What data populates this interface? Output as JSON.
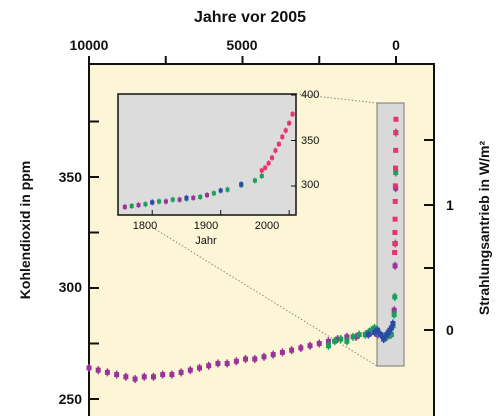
{
  "chart_data": [
    {
      "type": "scatter",
      "title": "",
      "top_axis": {
        "label": "Jahre vor 2005",
        "ticks": [
          "10000",
          "5000",
          "0"
        ],
        "reversed": true,
        "xlim": [
          10500,
          -1000
        ]
      },
      "y_left": {
        "label": "Kohlendioxid in ppm",
        "ticks": [
          "250",
          "300",
          "350"
        ],
        "ylim": [
          240,
          400
        ]
      },
      "y_right": {
        "label": "Strahlungsantrieb in W/m²",
        "ticks": [
          "0",
          "1"
        ]
      },
      "series": [
        {
          "color": "#993399",
          "x": [
            10000,
            9700,
            9400,
            9100,
            8800,
            8500,
            8200,
            7900,
            7600,
            7300,
            7000,
            6700,
            6400,
            6100,
            5800,
            5500,
            5200,
            4900,
            4600,
            4300,
            4000,
            3700,
            3400,
            3100,
            2800,
            2500,
            2200,
            1900,
            1600,
            1300,
            1000,
            800,
            600,
            400,
            300,
            200,
            100,
            60,
            30,
            10
          ],
          "y": [
            264,
            263,
            262,
            261,
            260,
            259,
            260,
            260,
            261,
            261,
            262,
            263,
            264,
            265,
            266,
            266,
            267,
            268,
            268,
            269,
            270,
            271,
            272,
            273,
            274,
            275,
            276,
            277,
            278,
            278,
            279,
            280,
            279,
            277,
            278,
            279,
            283,
            290,
            310,
            345
          ]
        },
        {
          "color": "#1a9e5a",
          "x": [
            2200,
            2000,
            1800,
            1600,
            1400,
            1200,
            1000,
            900,
            800,
            700,
            600,
            500,
            400,
            300,
            250,
            200,
            150,
            100,
            60,
            40,
            20,
            10,
            5
          ],
          "y": [
            274,
            276,
            277,
            276,
            278,
            279,
            279,
            280,
            281,
            282,
            280,
            279,
            278,
            278,
            280,
            281,
            279,
            283,
            288,
            296,
            320,
            352,
            370
          ]
        },
        {
          "color": "#2b4aa8",
          "x": [
            900,
            700,
            600,
            500,
            400,
            300,
            250,
            200,
            150,
            100
          ],
          "y": [
            279,
            280,
            281,
            279,
            277,
            279,
            280,
            281,
            282,
            284
          ]
        },
        {
          "color": "#e8336e",
          "x": [
            45,
            40,
            35,
            30,
            25,
            20,
            15,
            10,
            5,
            2
          ],
          "y": [
            316,
            320,
            325,
            331,
            339,
            346,
            354,
            362,
            370,
            376
          ]
        }
      ]
    },
    {
      "type": "scatter",
      "title": "",
      "inset": true,
      "xlabel": "Jahr",
      "x_ticks": [
        "1800",
        "1900",
        "2000"
      ],
      "y_ticks": [
        "300",
        "350",
        "400"
      ],
      "xlim": [
        1750,
        2010
      ],
      "ylim": [
        272,
        402
      ],
      "series": [
        {
          "color": "#993399",
          "x": [
            1760,
            1780,
            1800,
            1820,
            1840,
            1860,
            1880
          ],
          "y": [
            277,
            279,
            282,
            283,
            285,
            287,
            290
          ]
        },
        {
          "color": "#1a9e5a",
          "x": [
            1770,
            1790,
            1810,
            1830,
            1850,
            1870,
            1890,
            1910,
            1930,
            1950,
            1960
          ],
          "y": [
            278,
            280,
            283,
            285,
            286,
            288,
            292,
            296,
            301,
            306,
            311
          ]
        },
        {
          "color": "#2b4aa8",
          "x": [
            1800,
            1850,
            1900,
            1930
          ],
          "y": [
            282,
            287,
            295,
            302
          ]
        },
        {
          "color": "#e8336e",
          "x": [
            1960,
            1965,
            1970,
            1975,
            1980,
            1985,
            1990,
            1995,
            2000,
            2005
          ],
          "y": [
            317,
            320,
            325,
            331,
            339,
            346,
            354,
            361,
            369,
            379
          ]
        }
      ]
    }
  ]
}
